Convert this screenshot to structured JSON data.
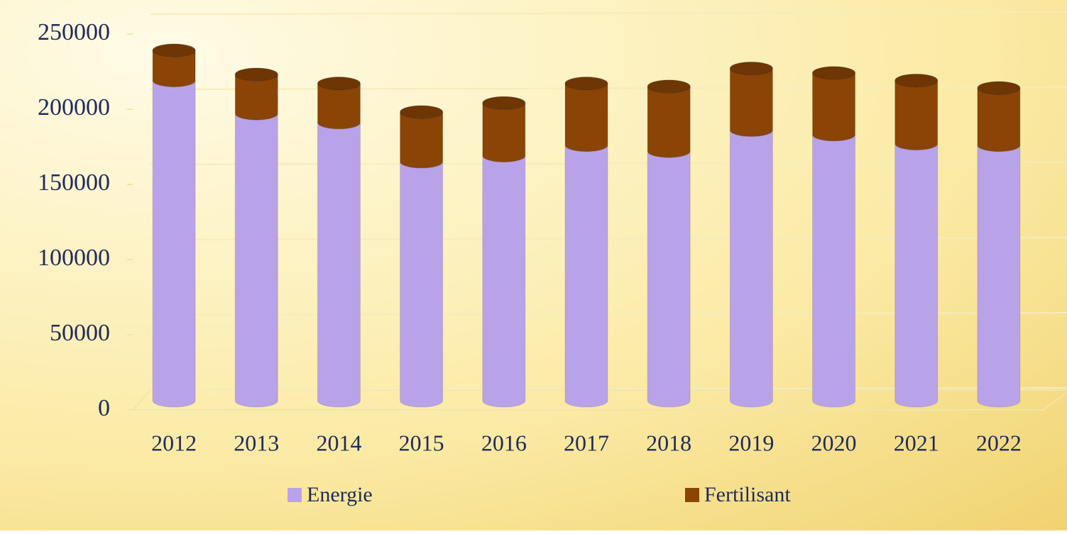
{
  "chart_data": {
    "type": "bar",
    "stacked": true,
    "categories": [
      "2012",
      "2013",
      "2014",
      "2015",
      "2016",
      "2017",
      "2018",
      "2019",
      "2020",
      "2021",
      "2022"
    ],
    "series": [
      {
        "name": "Energie",
        "color": "#b9a3e8",
        "values": [
          213000,
          191000,
          185000,
          159000,
          163000,
          170000,
          166000,
          180000,
          177000,
          171000,
          170000
        ]
      },
      {
        "name": "Fertilisant",
        "color": "#8a4406",
        "values": [
          20000,
          26000,
          26000,
          33000,
          35000,
          41000,
          43000,
          41000,
          41000,
          42000,
          38000
        ]
      }
    ],
    "ylim": [
      0,
      250000
    ],
    "yticks": [
      0,
      50000,
      100000,
      150000,
      200000,
      250000
    ],
    "grid": true,
    "legend": "bottom"
  }
}
